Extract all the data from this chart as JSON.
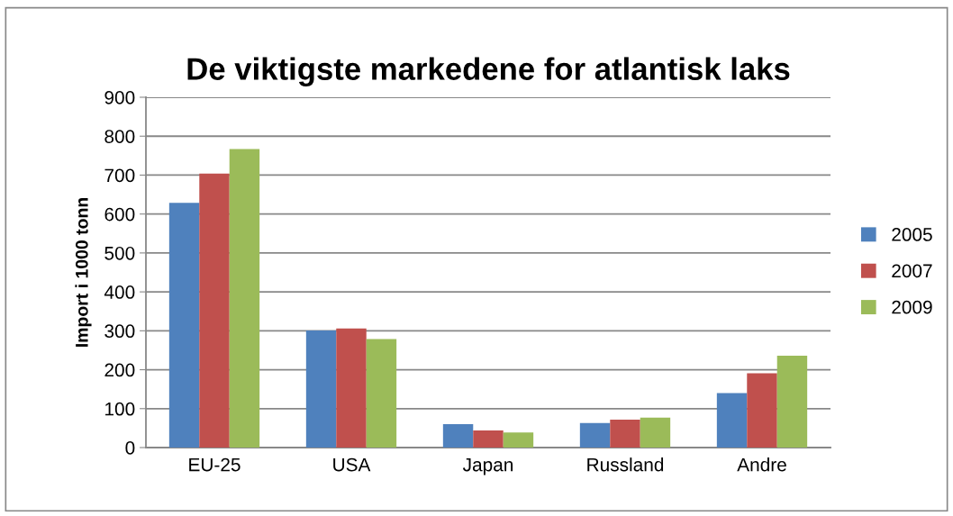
{
  "chart_data": {
    "type": "bar",
    "title": "De viktigste markedene for atlantisk laks",
    "ylabel": "Import i 1000 tonn",
    "categories": [
      "EU-25",
      "USA",
      "Japan",
      "Russland",
      "Andre"
    ],
    "series": [
      {
        "name": "2005",
        "color": "#4f81bd",
        "values": [
          629,
          301,
          60,
          63,
          140
        ]
      },
      {
        "name": "2007",
        "color": "#c0504d",
        "values": [
          704,
          306,
          44,
          72,
          191
        ]
      },
      {
        "name": "2009",
        "color": "#9bbb59",
        "values": [
          767,
          279,
          39,
          77,
          236
        ]
      }
    ],
    "ylim": [
      0,
      900
    ],
    "yticks": [
      0,
      100,
      200,
      300,
      400,
      500,
      600,
      700,
      800,
      900
    ],
    "grid": "y",
    "legend": "right"
  }
}
